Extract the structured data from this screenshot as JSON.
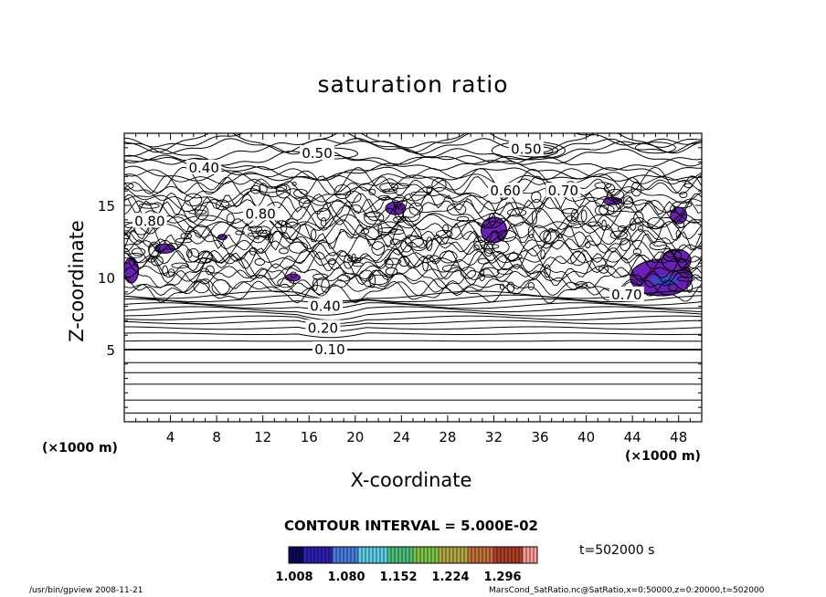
{
  "chart_data": {
    "type": "heatmap",
    "title": "saturation ratio",
    "xlabel": "X-coordinate",
    "ylabel": "Z-coordinate",
    "x_unit": "(×1000 m)",
    "y_unit": "(×1000 m)",
    "xlim": [
      0,
      50
    ],
    "ylim": [
      0,
      20
    ],
    "x_ticks": [
      4,
      8,
      12,
      16,
      20,
      24,
      28,
      32,
      36,
      40,
      44,
      48
    ],
    "y_ticks": [
      5,
      10,
      15
    ],
    "contour_interval": "CONTOUR INTERVAL = 5.000E-02",
    "contour_labels": [
      {
        "text": "0.10",
        "x": 17.8,
        "y": 5.0
      },
      {
        "text": "0.20",
        "x": 17.2,
        "y": 6.5
      },
      {
        "text": "0.40",
        "x": 17.4,
        "y": 8.0
      },
      {
        "text": "0.50",
        "x": 16.7,
        "y": 18.6
      },
      {
        "text": "0.50",
        "x": 34.8,
        "y": 18.9
      },
      {
        "text": "0.40",
        "x": 6.9,
        "y": 17.6
      },
      {
        "text": "0.80",
        "x": 2.2,
        "y": 13.9
      },
      {
        "text": "0.80",
        "x": 11.8,
        "y": 14.4
      },
      {
        "text": "0.60",
        "x": 33.0,
        "y": 16.0
      },
      {
        "text": "0.70",
        "x": 38.0,
        "y": 16.0
      },
      {
        "text": "0.70",
        "x": 43.5,
        "y": 8.8
      }
    ],
    "filled_regions_note": "supersaturation > 1.0",
    "colorbar": {
      "ticks": [
        "1.008",
        "1.080",
        "1.152",
        "1.224",
        "1.296"
      ],
      "colors": [
        "#0a0a5a",
        "#2f1fb0",
        "#4a7de0",
        "#5fd0e8",
        "#4fc07a",
        "#7ec64a",
        "#b0a840",
        "#c4703a",
        "#b0402a",
        "#ff9a9a"
      ]
    }
  },
  "labels": {
    "title": "saturation ratio",
    "xlabel": "X-coordinate",
    "ylabel": "Z-coordinate",
    "unit_left": "(×1000 m)",
    "unit_right": "(×1000 m)",
    "contour_interval": "CONTOUR INTERVAL = 5.000E-02",
    "time": "t=502000 s",
    "footer_left": "/usr/bin/gpview  2008-11-21",
    "footer_right": "MarsCond_SatRatio.nc@SatRatio,x=0:50000,z=0:20000,t=502000"
  }
}
